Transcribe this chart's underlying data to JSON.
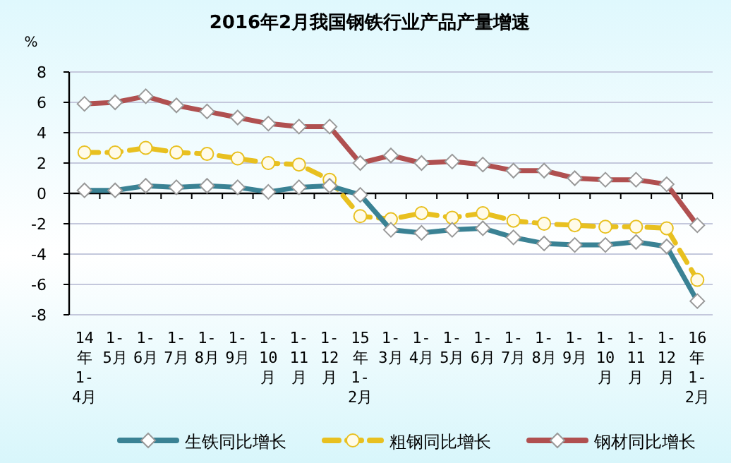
{
  "chart_data": {
    "type": "line",
    "title": "2016年2月我国钢铁行业产品产量增速",
    "ylabel": "%",
    "categories": [
      "14年1-4月",
      "1-5月",
      "1-6月",
      "1-7月",
      "1-8月",
      "1-9月",
      "1-10月",
      "1-11月",
      "1-12月",
      "15年1-2月",
      "1-3月",
      "1-4月",
      "1-5月",
      "1-6月",
      "1-7月",
      "1-8月",
      "1-9月",
      "1-10月",
      "1-11月",
      "1-12月",
      "16年1-2月"
    ],
    "series": [
      {
        "name": "生铁同比增长",
        "color": "#3a8294",
        "marker": "diamond",
        "line_style": "solid",
        "values": [
          0.2,
          0.2,
          0.5,
          0.4,
          0.5,
          0.4,
          0.1,
          0.4,
          0.5,
          -0.1,
          -2.4,
          -2.6,
          -2.4,
          -2.3,
          -2.9,
          -3.3,
          -3.4,
          -3.4,
          -3.2,
          -3.5,
          -7.1
        ]
      },
      {
        "name": "粗钢同比增长",
        "color": "#e8c020",
        "marker": "circle",
        "line_style": "dashed",
        "values": [
          2.7,
          2.7,
          3.0,
          2.7,
          2.6,
          2.3,
          2.0,
          1.9,
          0.9,
          -1.5,
          -1.7,
          -1.3,
          -1.6,
          -1.3,
          -1.8,
          -2.0,
          -2.1,
          -2.2,
          -2.2,
          -2.3,
          -5.7
        ]
      },
      {
        "name": "钢材同比增长",
        "color": "#b05050",
        "marker": "diamond",
        "line_style": "solid",
        "values": [
          5.9,
          6.0,
          6.4,
          5.8,
          5.4,
          5.0,
          4.6,
          4.4,
          4.4,
          2.0,
          2.5,
          2.0,
          2.1,
          1.9,
          1.5,
          1.5,
          1.0,
          0.9,
          0.9,
          0.6,
          -2.1
        ]
      }
    ],
    "ylim": [
      -8,
      8
    ],
    "yticks": [
      -8,
      -6,
      -4,
      -2,
      0,
      2,
      4,
      6,
      8
    ],
    "grid": "y",
    "legend": "bottom"
  }
}
